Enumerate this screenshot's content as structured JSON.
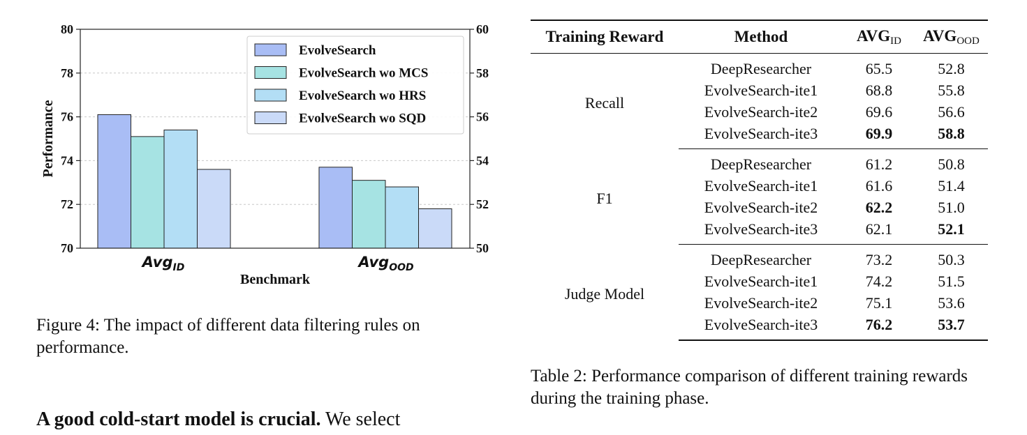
{
  "figure": {
    "caption": "Figure 4: The impact of different data filtering rules on performance."
  },
  "chart_data": {
    "type": "bar",
    "xlabel": "Benchmark",
    "ylabel": "Performance",
    "categories": [
      {
        "main": "Avg",
        "sub": "ID",
        "axis": "left"
      },
      {
        "main": "Avg",
        "sub": "OOD",
        "axis": "right"
      }
    ],
    "left_axis": {
      "ylim": [
        70,
        80
      ],
      "ticks": [
        70,
        72,
        74,
        76,
        78,
        80
      ]
    },
    "right_axis": {
      "ylim": [
        50,
        60
      ],
      "ticks": [
        50,
        52,
        54,
        56,
        58,
        60
      ]
    },
    "grid": true,
    "legend_position": "top-right",
    "series": [
      {
        "name": "EvolveSearch",
        "color": "#a9bdf5",
        "values": [
          76.1,
          53.7
        ]
      },
      {
        "name": "EvolveSearch wo MCS",
        "color": "#a6e3e3",
        "values": [
          75.1,
          53.1
        ]
      },
      {
        "name": "EvolveSearch wo HRS",
        "color": "#b3def5",
        "values": [
          75.4,
          52.8
        ]
      },
      {
        "name": "EvolveSearch wo SQD",
        "color": "#cadaf8",
        "values": [
          73.6,
          51.8
        ]
      }
    ]
  },
  "paragraph": {
    "heading": "A good cold-start model is crucial.",
    "text": " We select"
  },
  "table": {
    "headers": {
      "reward": "Training Reward",
      "method": "Method",
      "id_main": "AVG",
      "id_sub": "ID",
      "ood_main": "AVG",
      "ood_sub": "OOD"
    },
    "groups": [
      {
        "reward": "Recall",
        "rows": [
          {
            "method": "DeepResearcher",
            "id": "65.5",
            "ood": "52.8",
            "id_bold": false,
            "ood_bold": false
          },
          {
            "method": "EvolveSearch-ite1",
            "id": "68.8",
            "ood": "55.8",
            "id_bold": false,
            "ood_bold": false
          },
          {
            "method": "EvolveSearch-ite2",
            "id": "69.6",
            "ood": "56.6",
            "id_bold": false,
            "ood_bold": false
          },
          {
            "method": "EvolveSearch-ite3",
            "id": "69.9",
            "ood": "58.8",
            "id_bold": true,
            "ood_bold": true
          }
        ]
      },
      {
        "reward": "F1",
        "rows": [
          {
            "method": "DeepResearcher",
            "id": "61.2",
            "ood": "50.8",
            "id_bold": false,
            "ood_bold": false
          },
          {
            "method": "EvolveSearch-ite1",
            "id": "61.6",
            "ood": "51.4",
            "id_bold": false,
            "ood_bold": false
          },
          {
            "method": "EvolveSearch-ite2",
            "id": "62.2",
            "ood": "51.0",
            "id_bold": true,
            "ood_bold": false
          },
          {
            "method": "EvolveSearch-ite3",
            "id": "62.1",
            "ood": "52.1",
            "id_bold": false,
            "ood_bold": true
          }
        ]
      },
      {
        "reward": "Judge Model",
        "rows": [
          {
            "method": "DeepResearcher",
            "id": "73.2",
            "ood": "50.3",
            "id_bold": false,
            "ood_bold": false
          },
          {
            "method": "EvolveSearch-ite1",
            "id": "74.2",
            "ood": "51.5",
            "id_bold": false,
            "ood_bold": false
          },
          {
            "method": "EvolveSearch-ite2",
            "id": "75.1",
            "ood": "53.6",
            "id_bold": false,
            "ood_bold": false
          },
          {
            "method": "EvolveSearch-ite3",
            "id": "76.2",
            "ood": "53.7",
            "id_bold": true,
            "ood_bold": true
          }
        ]
      }
    ],
    "caption": "Table 2: Performance comparison of different training rewards during the training phase."
  }
}
